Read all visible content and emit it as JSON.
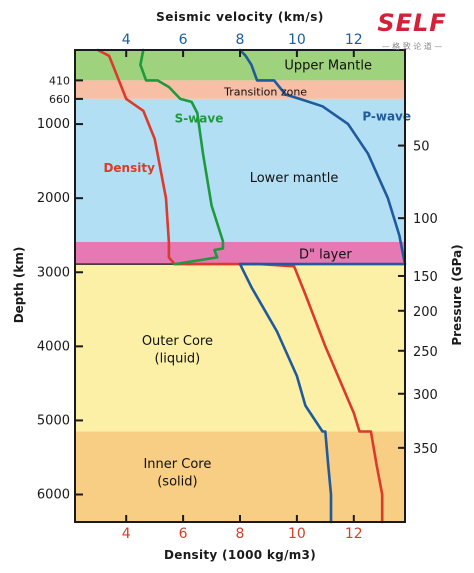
{
  "brand": {
    "logo_text": "SELF",
    "tagline": "— 格 致 论 道 —",
    "color": "#d4213a"
  },
  "chart_data": {
    "type": "line",
    "title": "Seismic velocity (km/s)",
    "xlabel": "Density (1000 kg/m3)",
    "ylabel": "Depth (km)",
    "y2label": "Pressure (GPa)",
    "xlim": [
      2.2,
      13.8
    ],
    "ylim": [
      0,
      6371
    ],
    "depth_ticks": [
      410,
      660,
      1000,
      2000,
      3000,
      4000,
      5000,
      6000
    ],
    "depth_tick_labels": [
      "410",
      "660",
      "1000",
      "2000",
      "3000",
      "4000",
      "5000",
      "6000"
    ],
    "top_ticks": [
      4,
      6,
      8,
      10,
      12
    ],
    "top_tick_labels": [
      "4",
      "6",
      "8",
      "10",
      "12"
    ],
    "top_tick_color": "#1a5fa0",
    "bottom_ticks": [
      4,
      6,
      8,
      10,
      12
    ],
    "bottom_tick_labels": [
      "4",
      "6",
      "8",
      "10",
      "12"
    ],
    "bottom_tick_color": "#d0422a",
    "pressure_ticks": [
      {
        "label": "50",
        "depth": 1290
      },
      {
        "label": "100",
        "depth": 2270
      },
      {
        "label": "150",
        "depth": 3050
      },
      {
        "label": "200",
        "depth": 3520
      },
      {
        "label": "250",
        "depth": 4060
      },
      {
        "label": "300",
        "depth": 4640
      },
      {
        "label": "350",
        "depth": 5370
      }
    ],
    "layers": [
      {
        "name": "Upper Mantle",
        "from": 0,
        "to": 410,
        "color": "#9fd27c",
        "label_depth": 200,
        "label_x": 11.1,
        "font": 13
      },
      {
        "name": "Transition zone",
        "from": 410,
        "to": 660,
        "color": "#f7bfa6",
        "label_depth": 560,
        "label_x": 8.9,
        "font": 11
      },
      {
        "name": "Lower mantle",
        "from": 660,
        "to": 2590,
        "color": "#b3dff4",
        "label_depth": 1720,
        "label_x": 9.9,
        "font": 13
      },
      {
        "name": "D\" layer",
        "from": 2590,
        "to": 2890,
        "color": "#e678b4",
        "label_depth": 2750,
        "label_x": 11.0,
        "font": 13
      },
      {
        "name": "Outer Core\n(liquid)",
        "from": 2890,
        "to": 5150,
        "color": "#fbf0a6",
        "label_depth": 4000,
        "label_x": 5.8,
        "font": 13
      },
      {
        "name": "Inner Core\n(solid)",
        "from": 5150,
        "to": 6371,
        "color": "#f8cd84",
        "label_depth": 5660,
        "label_x": 5.8,
        "font": 13
      }
    ],
    "series": [
      {
        "name": "Density",
        "color": "#dc3a2b",
        "label_depth": 1650,
        "label_x": 3.2,
        "x": [
          3.0,
          3.4,
          3.6,
          4.0,
          4.6,
          5.0,
          5.4,
          5.5,
          5.5,
          5.7,
          8.7,
          9.9,
          10.3,
          11.0,
          12.0,
          12.2,
          12.6,
          12.8,
          13.0,
          13.0
        ],
        "y": [
          0,
          80,
          270,
          660,
          820,
          1200,
          2000,
          2600,
          2800,
          2890,
          2890,
          2920,
          3300,
          4000,
          4900,
          5150,
          5150,
          5600,
          6000,
          6371
        ]
      },
      {
        "name": "S-wave",
        "color": "#1d9a3c",
        "label_depth": 980,
        "label_x": 5.7,
        "x": [
          4.6,
          4.5,
          4.7,
          5.1,
          5.5,
          5.9,
          6.3,
          6.5,
          6.7,
          7.0,
          7.4,
          7.4,
          7.1,
          7.2,
          5.7
        ],
        "y": [
          0,
          200,
          410,
          410,
          500,
          660,
          700,
          850,
          1400,
          2100,
          2580,
          2680,
          2700,
          2800,
          2890
        ]
      },
      {
        "name": "P-wave",
        "color": "#1f5a9e",
        "label_depth": 950,
        "label_x": 12.3,
        "x": [
          8.0,
          8.2,
          8.4,
          8.6,
          9.2,
          9.6,
          10.1,
          10.9,
          11.8,
          12.5,
          13.2,
          13.6,
          13.7,
          13.8,
          8.0,
          8.4,
          9.3,
          10.0,
          10.3,
          10.9,
          11.0,
          11.1,
          11.2,
          11.2
        ],
        "y": [
          0,
          80,
          200,
          410,
          410,
          600,
          660,
          760,
          1000,
          1400,
          2000,
          2500,
          2700,
          2890,
          2890,
          3200,
          3800,
          4400,
          4800,
          5150,
          5150,
          5600,
          6000,
          6371
        ]
      }
    ]
  }
}
